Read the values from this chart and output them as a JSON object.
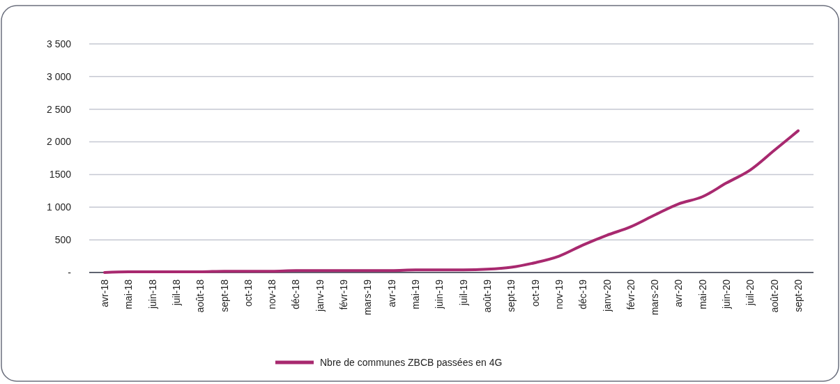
{
  "chart_data": {
    "type": "line",
    "categories": [
      "avr-18",
      "mai-18",
      "juin-18",
      "juil-18",
      "août-18",
      "sept-18",
      "oct-18",
      "nov-18",
      "déc-18",
      "janv-19",
      "févr-19",
      "mars-19",
      "avr-19",
      "mai-19",
      "juin-19",
      "juil-19",
      "août-19",
      "sept-19",
      "oct-19",
      "nov-19",
      "déc-19",
      "janv-20",
      "févr-20",
      "mars-20",
      "avr-20",
      "mai-20",
      "juin-20",
      "juil-20",
      "août-20",
      "sept-20"
    ],
    "series": [
      {
        "name": "Nbre de communes ZBCB passées en 4G",
        "color": "#a8296f",
        "values": [
          0,
          10,
          10,
          10,
          10,
          20,
          20,
          20,
          30,
          30,
          30,
          30,
          30,
          40,
          40,
          40,
          50,
          80,
          150,
          250,
          420,
          570,
          700,
          880,
          1050,
          1160,
          1370,
          1570,
          1870,
          2170
        ]
      }
    ],
    "ylim": [
      0,
      3500
    ],
    "yticks": [
      {
        "value": 0,
        "label": "-"
      },
      {
        "value": 500,
        "label": "500"
      },
      {
        "value": 1000,
        "label": "1 000"
      },
      {
        "value": 1500,
        "label": "1500"
      },
      {
        "value": 2000,
        "label": "2 000"
      },
      {
        "value": 2500,
        "label": "2 500"
      },
      {
        "value": 3000,
        "label": "3 000"
      },
      {
        "value": 3500,
        "label": "3 500"
      }
    ],
    "grid": "y",
    "legend": "bottom",
    "marker": "none",
    "line_style": "solid"
  }
}
